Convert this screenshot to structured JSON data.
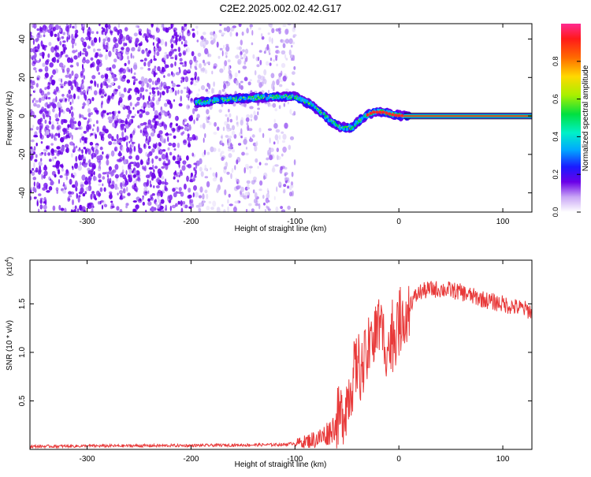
{
  "title": "C2E2.2025.002.02.42.G17",
  "colors": {
    "axis": "#000000",
    "snr_line": "#e83a3a",
    "ridge_hot": "#ff2a2a"
  },
  "chart_data": [
    {
      "type": "heatmap",
      "title": "C2E2.2025.002.02.42.G17",
      "xlabel": "Height of straight line (km)",
      "ylabel": "Frequency (Hz)",
      "xlim": [
        -355,
        128
      ],
      "ylim": [
        -50,
        48
      ],
      "xticks": [
        -300,
        -200,
        -100,
        0,
        100
      ],
      "yticks": [
        -40,
        -20,
        0,
        20,
        40
      ],
      "ridge": {
        "x": [
          -195,
          -180,
          -160,
          -140,
          -120,
          -100,
          -85,
          -75,
          -65,
          -55,
          -45,
          -35,
          -25,
          -15,
          -5,
          5,
          128
        ],
        "y": [
          7,
          8,
          9,
          9.5,
          10,
          10,
          6,
          2,
          -3,
          -6,
          -6,
          -1,
          2,
          2,
          0.5,
          0,
          0
        ]
      },
      "colorbar": {
        "label": "Normalized spectral amplitude",
        "ticks": [
          0.0,
          0.2,
          0.4,
          0.6,
          0.8
        ],
        "range": [
          0,
          1
        ]
      },
      "grid": false
    },
    {
      "type": "line",
      "xlabel": "Height of straight line (km)",
      "ylabel": "SNR (10 * v/v)",
      "y_multiplier": "(x10",
      "y_multiplier_exp": "4",
      "y_multiplier_close": ")",
      "xlim": [
        -355,
        128
      ],
      "ylim": [
        0,
        1.95
      ],
      "xticks": [
        -300,
        -200,
        -100,
        0,
        100
      ],
      "yticks": [
        0.5,
        1.0,
        1.5
      ],
      "series": [
        {
          "x": [
            -355,
            -300,
            -200,
            -150,
            -110,
            -90,
            -75,
            -65,
            -55,
            -50,
            -45,
            -40,
            -35,
            -30,
            -25,
            -20,
            -15,
            -10,
            -5,
            0,
            5,
            10,
            20,
            30,
            40,
            50,
            60,
            70,
            80,
            90,
            100,
            110,
            120,
            128
          ],
          "y": [
            0.03,
            0.035,
            0.04,
            0.045,
            0.05,
            0.08,
            0.12,
            0.2,
            0.35,
            0.5,
            0.7,
            0.9,
            0.8,
            1.0,
            1.1,
            1.3,
            1.15,
            1.05,
            1.15,
            1.3,
            1.4,
            1.5,
            1.62,
            1.65,
            1.65,
            1.64,
            1.62,
            1.58,
            1.55,
            1.52,
            1.5,
            1.47,
            1.45,
            1.42
          ]
        }
      ],
      "grid": false
    }
  ]
}
